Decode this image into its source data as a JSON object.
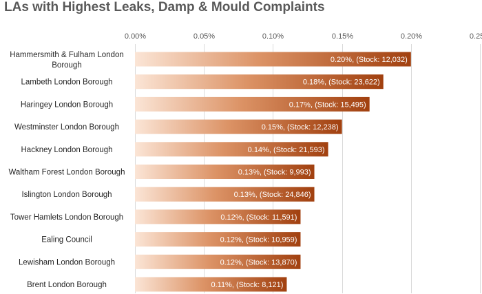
{
  "chart_data": {
    "type": "bar",
    "orientation": "horizontal",
    "title": "LAs with Highest Leaks, Damp & Mould Complaints",
    "xlabel": "",
    "ylabel": "",
    "xlim": [
      0,
      0.25
    ],
    "x_ticks": [
      "0.00%",
      "0.05%",
      "0.10%",
      "0.15%",
      "0.20%",
      "0.25%"
    ],
    "grid": "vertical",
    "legend": "none",
    "categories": [
      [
        "Hammersmith & Fulham London",
        "Borough"
      ],
      [
        "Lambeth London Borough"
      ],
      [
        "Haringey London Borough"
      ],
      [
        "Westminster London Borough"
      ],
      [
        "Hackney London Borough"
      ],
      [
        "Waltham Forest London Borough"
      ],
      [
        "Islington London Borough"
      ],
      [
        "Tower Hamlets London Borough"
      ],
      [
        "Ealing Council"
      ],
      [
        "Lewisham London Borough"
      ],
      [
        "Brent London Borough"
      ]
    ],
    "values": [
      0.2,
      0.18,
      0.17,
      0.15,
      0.14,
      0.13,
      0.13,
      0.12,
      0.12,
      0.12,
      0.11
    ],
    "data_labels": [
      "0.20%, (Stock: 12,032)",
      "0.18%, (Stock: 23,622)",
      "0.17%, (Stock: 15,495)",
      "0.15%, (Stock: 12,238)",
      "0.14%, (Stock: 21,593)",
      "0.13%, (Stock: 9,993)",
      "0.13%, (Stock: 24,846)",
      "0.12%, (Stock: 11,591)",
      "0.12%, (Stock: 10,959)",
      "0.12%, (Stock: 13,870)",
      "0.11%, (Stock: 8,121)"
    ],
    "colors": {
      "bar_start": "#fbe5d6",
      "bar_end": "#a1400f",
      "gridline": "#d9d9d9",
      "title": "#595959"
    }
  }
}
